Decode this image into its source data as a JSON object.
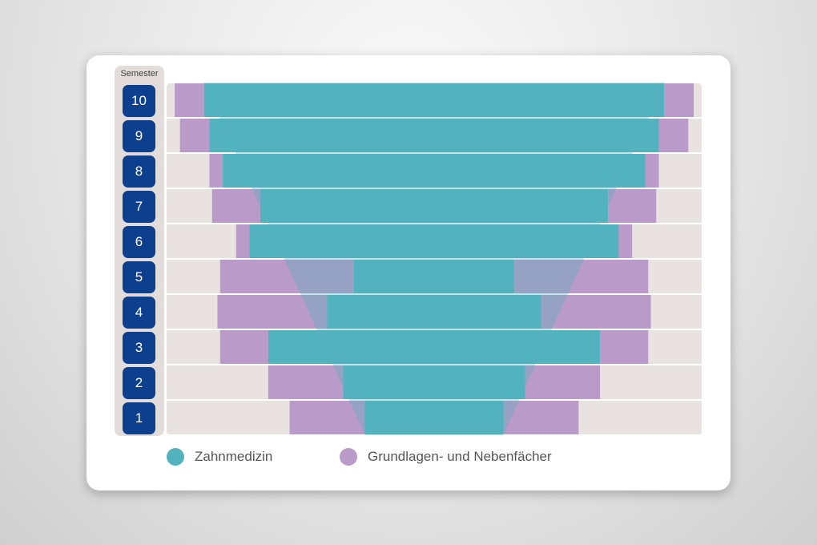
{
  "header": {
    "semester_label": "Semester"
  },
  "semesters": [
    "10",
    "9",
    "8",
    "7",
    "6",
    "5",
    "4",
    "3",
    "2",
    "1"
  ],
  "legend": {
    "items": [
      {
        "label": "Zahnmedizin",
        "color": "#52b2be"
      },
      {
        "label": "Grundlagen- und Nebenfächer",
        "color": "#b99ac8"
      }
    ]
  },
  "chart_data": {
    "type": "bar",
    "orientation": "horizontal-diverging",
    "categories": [
      "10",
      "9",
      "8",
      "7",
      "6",
      "5",
      "4",
      "3",
      "2",
      "1"
    ],
    "series": [
      {
        "name": "Zahnmedizin",
        "color": "#52b2be",
        "values": [
          86,
          84,
          79,
          65,
          69,
          30,
          40,
          62,
          34,
          26
        ]
      },
      {
        "name": "Grundlagen- und Nebenfächer",
        "color": "#b99ac8",
        "values": [
          11,
          11,
          5,
          18,
          5,
          50,
          41,
          18,
          28,
          28
        ]
      }
    ],
    "background_color": "#e8e2e1",
    "overlay": {
      "shape": "funnel",
      "color": "#52b2be"
    }
  }
}
